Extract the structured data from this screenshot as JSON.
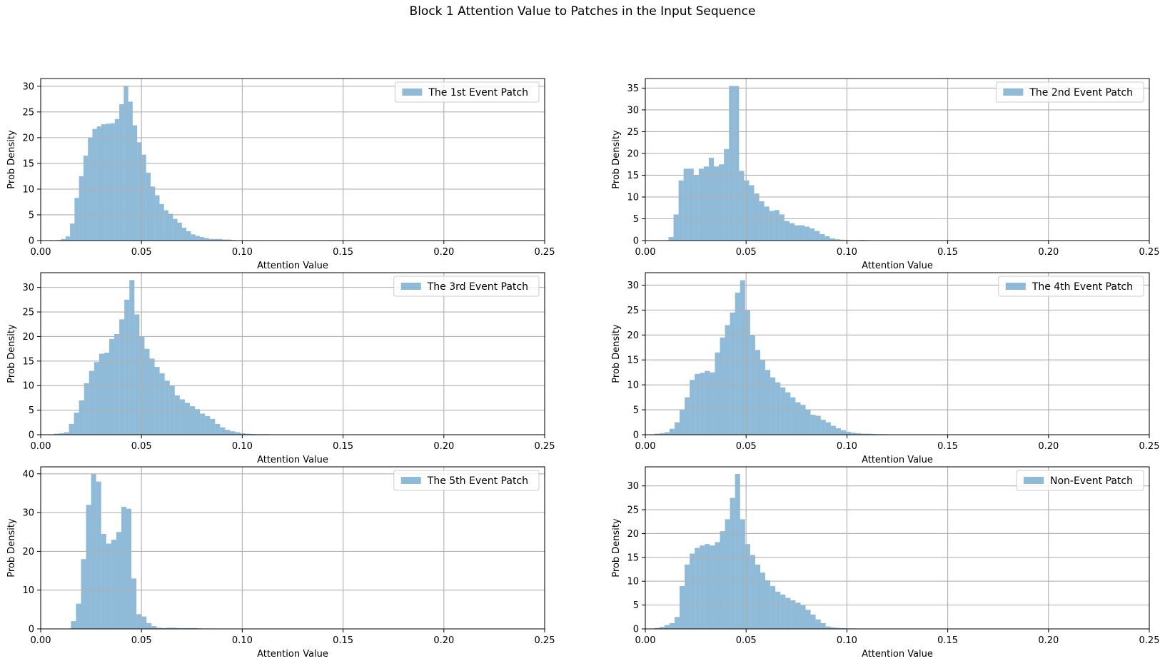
{
  "figure": {
    "title": "Block 1 Attention Value to Patches in the Input Sequence"
  },
  "colors": {
    "bar": "#1f77b4",
    "bar_opacity": 0.5,
    "grid": "#b0b0b0",
    "axis": "#000000"
  },
  "chart_data": [
    {
      "type": "bar",
      "legend": "The 1st Event Patch",
      "xlabel": "Attention Value",
      "ylabel": "Prob Density",
      "xlim": [
        0,
        0.25
      ],
      "ylim": [
        0,
        31.5
      ],
      "xticks": [
        "0.00",
        "0.05",
        "0.10",
        "0.15",
        "0.20",
        "0.25"
      ],
      "yticks": [
        0,
        5,
        10,
        15,
        20,
        25,
        30
      ],
      "grid": true,
      "legend_position": "upper right",
      "bin_start": 0.0079,
      "bin_width": 0.00222,
      "values": [
        0.1,
        0.3,
        0.8,
        3.3,
        8.3,
        12.5,
        16.5,
        20,
        21.7,
        22.2,
        22.6,
        22.7,
        22.8,
        23.6,
        26.5,
        30.1,
        27,
        22.4,
        19.1,
        16.7,
        13.2,
        10.5,
        8.8,
        7.1,
        5.9,
        5.2,
        4.2,
        3.5,
        2.5,
        1.8,
        1.2,
        0.9,
        0.7,
        0.5,
        0.3,
        0.3,
        0.3,
        0.2,
        0.2,
        0.1,
        0.05
      ]
    },
    {
      "type": "bar",
      "legend": "The 2nd Event Patch",
      "xlabel": "Attention Value",
      "ylabel": "Prob Density",
      "xlim": [
        0,
        0.25
      ],
      "ylim": [
        0,
        37.2
      ],
      "xticks": [
        "0.00",
        "0.05",
        "0.10",
        "0.15",
        "0.20",
        "0.25"
      ],
      "yticks": [
        0,
        5,
        10,
        15,
        20,
        25,
        30,
        35
      ],
      "grid": true,
      "legend_position": "upper right",
      "bin_start": 0.0115,
      "bin_width": 0.0025,
      "values": [
        0.8,
        6,
        13.8,
        16.5,
        16.5,
        15,
        16.5,
        17,
        19,
        17,
        17.5,
        21,
        35.5,
        35.5,
        16,
        13.8,
        12.7,
        10.8,
        9,
        7.8,
        6.8,
        7,
        6,
        4.5,
        4,
        3.5,
        3.5,
        3.2,
        2.8,
        2.2,
        1.5,
        1,
        0.5,
        0.3,
        0.2,
        0.15,
        0.1,
        0.1,
        0.15,
        0.1,
        0.05
      ]
    },
    {
      "type": "bar",
      "legend": "The 3rd Event Patch",
      "xlabel": "Attention Value",
      "ylabel": "Prob Density",
      "xlim": [
        0,
        0.25
      ],
      "ylim": [
        0,
        33
      ],
      "xticks": [
        "0.00",
        "0.05",
        "0.10",
        "0.15",
        "0.20",
        "0.25"
      ],
      "yticks": [
        0,
        5,
        10,
        15,
        20,
        25,
        30
      ],
      "grid": true,
      "legend_position": "upper right",
      "bin_start": 0.0065,
      "bin_width": 0.0025,
      "values": [
        0.2,
        0.3,
        0.5,
        2.2,
        4.5,
        7,
        10.5,
        13,
        14.8,
        16.5,
        16.7,
        19.5,
        20.5,
        23.5,
        27.5,
        31.5,
        24.5,
        20,
        17.5,
        15.5,
        13.8,
        12.5,
        11,
        10,
        8,
        7.2,
        6.5,
        5.8,
        5.2,
        4.3,
        3.8,
        3.2,
        2.2,
        1.5,
        1,
        0.7,
        0.5,
        0.3,
        0.2,
        0.15,
        0.1,
        0.1,
        0.1,
        0.05,
        0.05,
        0.05
      ]
    },
    {
      "type": "bar",
      "legend": "The 4th Event Patch",
      "xlabel": "Attention Value",
      "ylabel": "Prob Density",
      "xlim": [
        0,
        0.25
      ],
      "ylim": [
        0,
        32.5
      ],
      "xticks": [
        "0.00",
        "0.05",
        "0.10",
        "0.15",
        "0.20",
        "0.25"
      ],
      "yticks": [
        0,
        5,
        10,
        15,
        20,
        25,
        30
      ],
      "grid": true,
      "legend_position": "upper right",
      "bin_start": 0.0045,
      "bin_width": 0.0025,
      "values": [
        0.2,
        0.3,
        0.5,
        1.2,
        2.5,
        5,
        7.5,
        11,
        12.2,
        12.4,
        12.8,
        12.5,
        16.5,
        19.5,
        22,
        24.5,
        28.5,
        31,
        25,
        20,
        17,
        15,
        13,
        11.5,
        10.5,
        9.5,
        8.5,
        7.5,
        6.5,
        6,
        5,
        4,
        3.8,
        3,
        2.5,
        1.8,
        1.3,
        0.9,
        0.6,
        0.4,
        0.3,
        0.2,
        0.2,
        0.15,
        0.1,
        0.1,
        0.05
      ]
    },
    {
      "type": "bar",
      "legend": "The 5th Event Patch",
      "xlabel": "Attention Value",
      "ylabel": "Prob Density",
      "xlim": [
        0,
        0.25
      ],
      "ylim": [
        0,
        41.8
      ],
      "xticks": [
        "0.00",
        "0.05",
        "0.10",
        "0.15",
        "0.20",
        "0.25"
      ],
      "yticks": [
        0,
        10,
        20,
        30,
        40
      ],
      "grid": true,
      "legend_position": "upper right",
      "bin_start": 0.015,
      "bin_width": 0.0025,
      "values": [
        2,
        6.5,
        18,
        32,
        40,
        38,
        24.5,
        22,
        23,
        25,
        31.5,
        31,
        13,
        3.8,
        3.2,
        1.5,
        0.7,
        0.3,
        0.2,
        0.3,
        0.3,
        0.2,
        0.2,
        0.2,
        0.2,
        0.15,
        0.1,
        0.1,
        0.1,
        0.05
      ]
    },
    {
      "type": "bar",
      "legend": "Non-Event Patch",
      "xlabel": "Attention Value",
      "ylabel": "Prob Density",
      "xlim": [
        0,
        0.25
      ],
      "ylim": [
        0,
        34
      ],
      "xticks": [
        "0.00",
        "0.05",
        "0.10",
        "0.15",
        "0.20",
        "0.25"
      ],
      "yticks": [
        0,
        5,
        10,
        15,
        20,
        25,
        30
      ],
      "grid": true,
      "legend_position": "upper right",
      "bin_start": 0.0045,
      "bin_width": 0.0025,
      "values": [
        0.2,
        0.4,
        0.8,
        1.2,
        2.5,
        9,
        13.5,
        15.8,
        17,
        17.5,
        17.8,
        17.5,
        18.2,
        20.5,
        23,
        27.5,
        32.5,
        23,
        17.8,
        15.5,
        13.5,
        11.8,
        10.2,
        9,
        7.8,
        7.2,
        6.5,
        6,
        5.5,
        5,
        4,
        3,
        2,
        1.2,
        0.5,
        0.3,
        0.2,
        0.15,
        0.1,
        0.1,
        0.05,
        0.05
      ]
    }
  ]
}
